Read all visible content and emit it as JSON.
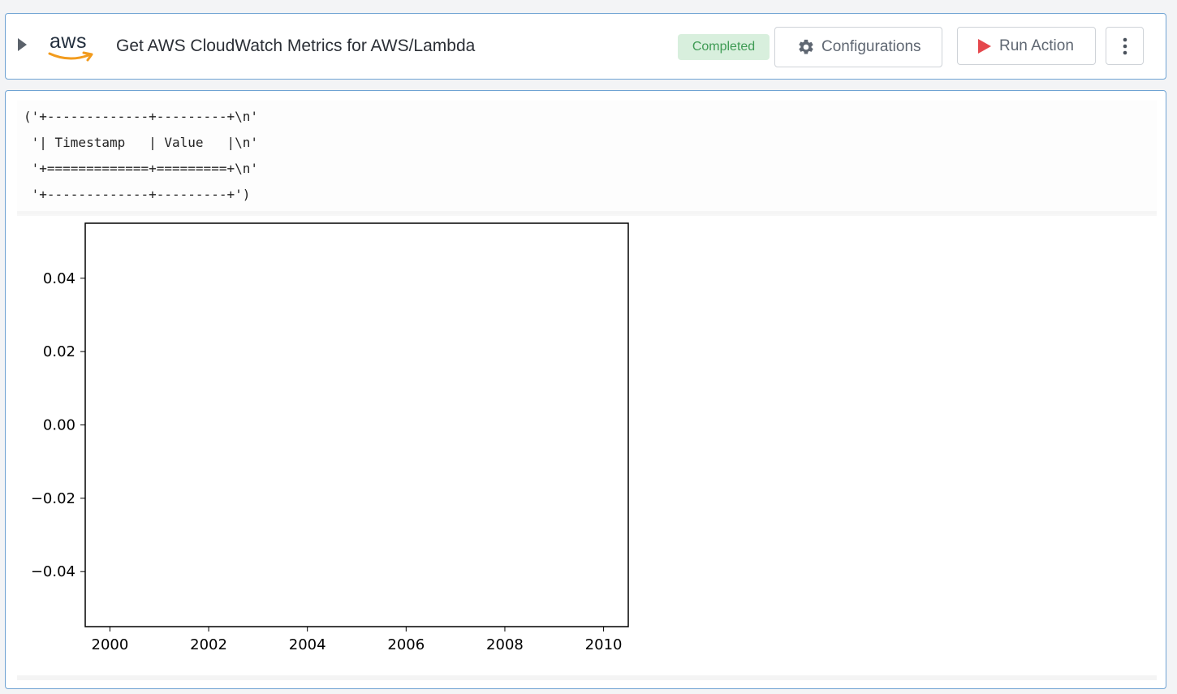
{
  "header": {
    "logo_text": "aws",
    "title": "Get AWS CloudWatch Metrics for AWS/Lambda",
    "status": "Completed",
    "configurations_label": "Configurations",
    "run_action_label": "Run Action"
  },
  "output": {
    "text": "('+-------------+---------+\\n'\n '| Timestamp   | Value   |\\n'\n '+=============+=========+\\n'\n '+-------------+---------+')"
  },
  "colors": {
    "status_bg": "#d8efdd",
    "status_text": "#3e9b54",
    "run_icon": "#e5484d",
    "card_border": "#6fa3d3"
  },
  "chart_data": {
    "type": "line",
    "title": "",
    "xlabel": "",
    "ylabel": "",
    "xlim": [
      1999.5,
      2010.5
    ],
    "ylim": [
      -0.055,
      0.055
    ],
    "x_ticks": [
      2000,
      2002,
      2004,
      2006,
      2008,
      2010
    ],
    "x_tick_labels": [
      "2000",
      "2002",
      "2004",
      "2006",
      "2008",
      "2010"
    ],
    "y_ticks": [
      0.04,
      0.02,
      0.0,
      -0.02,
      -0.04
    ],
    "y_tick_labels": [
      "0.04",
      "0.02",
      "0.00",
      "−0.02",
      "−0.04"
    ],
    "series": [],
    "grid": false
  }
}
